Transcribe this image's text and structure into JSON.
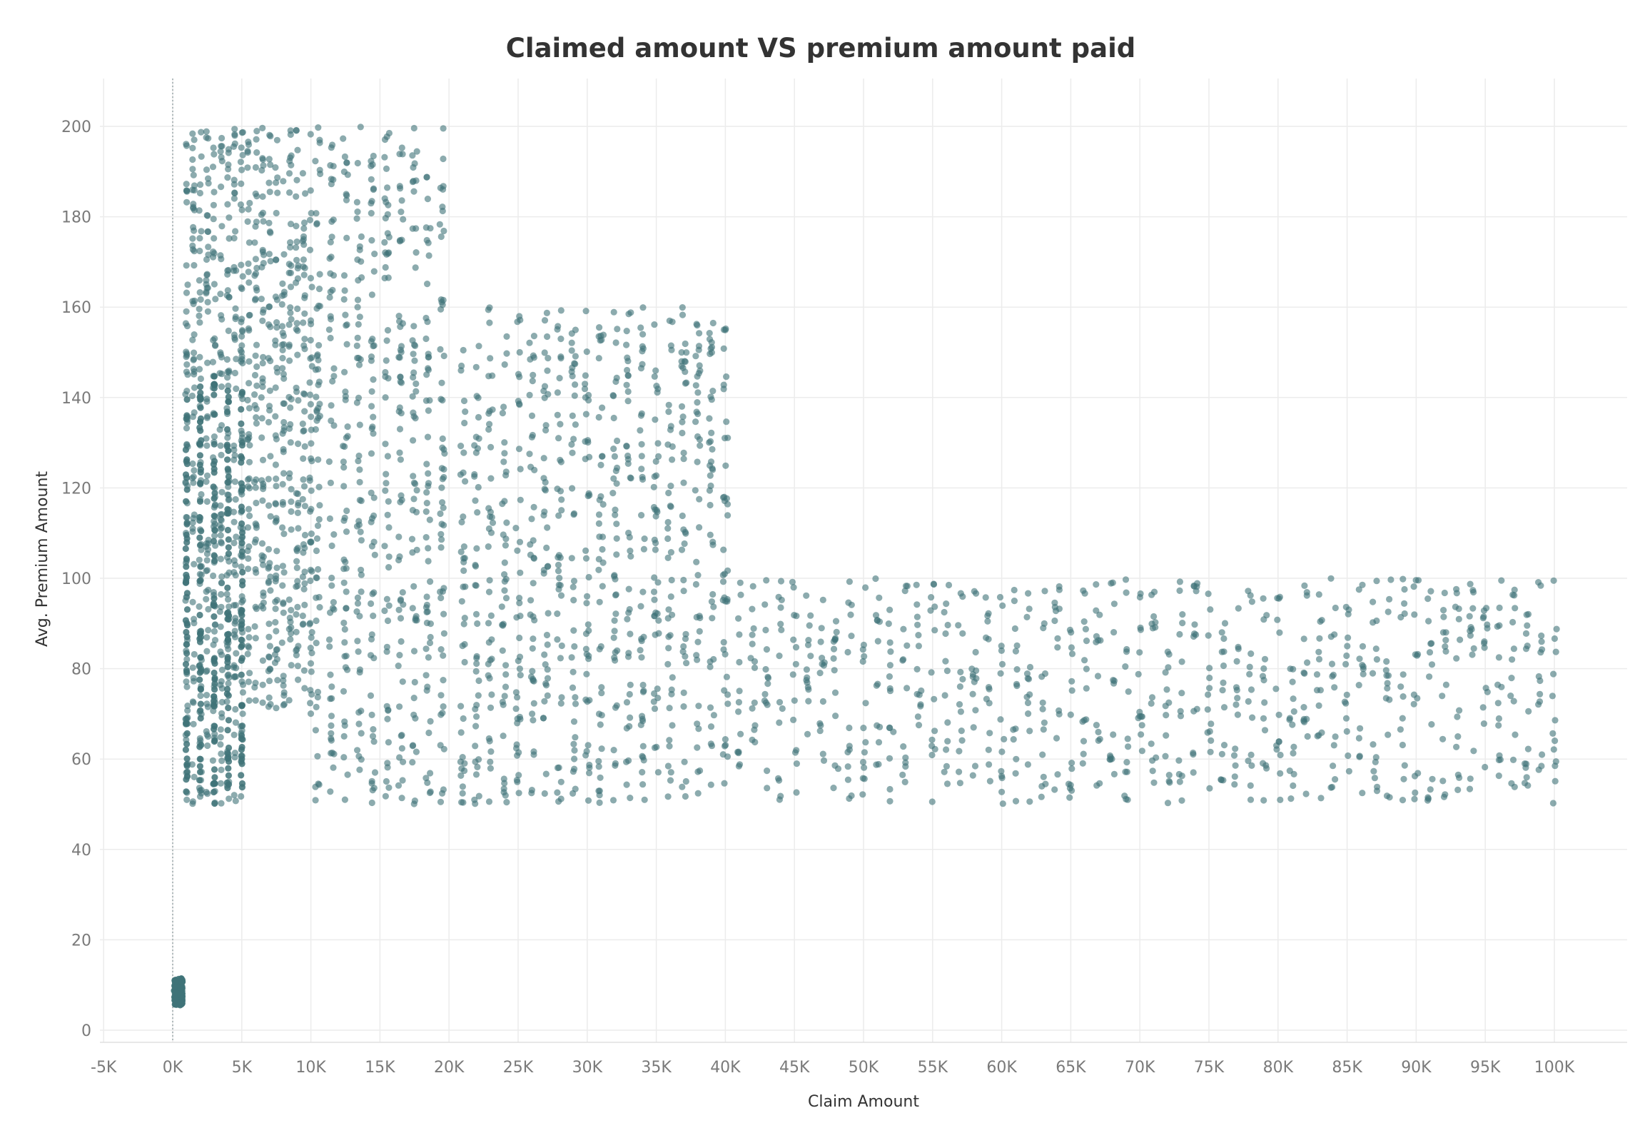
{
  "chart_data": {
    "type": "scatter",
    "title": "Claimed amount VS premium amount paid",
    "xlabel": "Claim Amount",
    "ylabel": "Avg. Premium Amount",
    "xlim": [
      -5000,
      100000
    ],
    "ylim": [
      0,
      200
    ],
    "x_ticks": [
      {
        "value": -5000,
        "label": "-5K"
      },
      {
        "value": 0,
        "label": "0K"
      },
      {
        "value": 5000,
        "label": "5K"
      },
      {
        "value": 10000,
        "label": "10K"
      },
      {
        "value": 15000,
        "label": "15K"
      },
      {
        "value": 20000,
        "label": "20K"
      },
      {
        "value": 25000,
        "label": "25K"
      },
      {
        "value": 30000,
        "label": "30K"
      },
      {
        "value": 35000,
        "label": "35K"
      },
      {
        "value": 40000,
        "label": "40K"
      },
      {
        "value": 45000,
        "label": "45K"
      },
      {
        "value": 50000,
        "label": "50K"
      },
      {
        "value": 55000,
        "label": "55K"
      },
      {
        "value": 60000,
        "label": "60K"
      },
      {
        "value": 65000,
        "label": "65K"
      },
      {
        "value": 70000,
        "label": "70K"
      },
      {
        "value": 75000,
        "label": "75K"
      },
      {
        "value": 80000,
        "label": "80K"
      },
      {
        "value": 85000,
        "label": "85K"
      },
      {
        "value": 90000,
        "label": "90K"
      },
      {
        "value": 95000,
        "label": "95K"
      },
      {
        "value": 100000,
        "label": "100K"
      }
    ],
    "y_ticks": [
      {
        "value": 0,
        "label": "0"
      },
      {
        "value": 20,
        "label": "20"
      },
      {
        "value": 40,
        "label": "40"
      },
      {
        "value": 60,
        "label": "60"
      },
      {
        "value": 80,
        "label": "80"
      },
      {
        "value": 100,
        "label": "100"
      },
      {
        "value": 120,
        "label": "120"
      },
      {
        "value": 140,
        "label": "140"
      },
      {
        "value": 160,
        "label": "160"
      },
      {
        "value": 180,
        "label": "180"
      },
      {
        "value": 200,
        "label": "200"
      }
    ],
    "grid": true,
    "point_color": "#3f7378",
    "reference_line_x": 0,
    "clusters": [
      {
        "x_range": [
          0,
          1000
        ],
        "y_range": [
          5,
          12
        ],
        "density": "very high"
      },
      {
        "x_range": [
          1000,
          5000
        ],
        "y_range": [
          50,
          200
        ],
        "density": "very high"
      },
      {
        "x_range": [
          5000,
          10000
        ],
        "y_range": [
          70,
          200
        ],
        "density": "high"
      },
      {
        "x_range": [
          10000,
          20000
        ],
        "y_range": [
          50,
          200
        ],
        "density": "medium"
      },
      {
        "x_range": [
          20000,
          40000
        ],
        "y_range": [
          50,
          160
        ],
        "density": "medium"
      },
      {
        "x_range": [
          40000,
          100000
        ],
        "y_range": [
          50,
          100
        ],
        "density": "low"
      }
    ]
  }
}
